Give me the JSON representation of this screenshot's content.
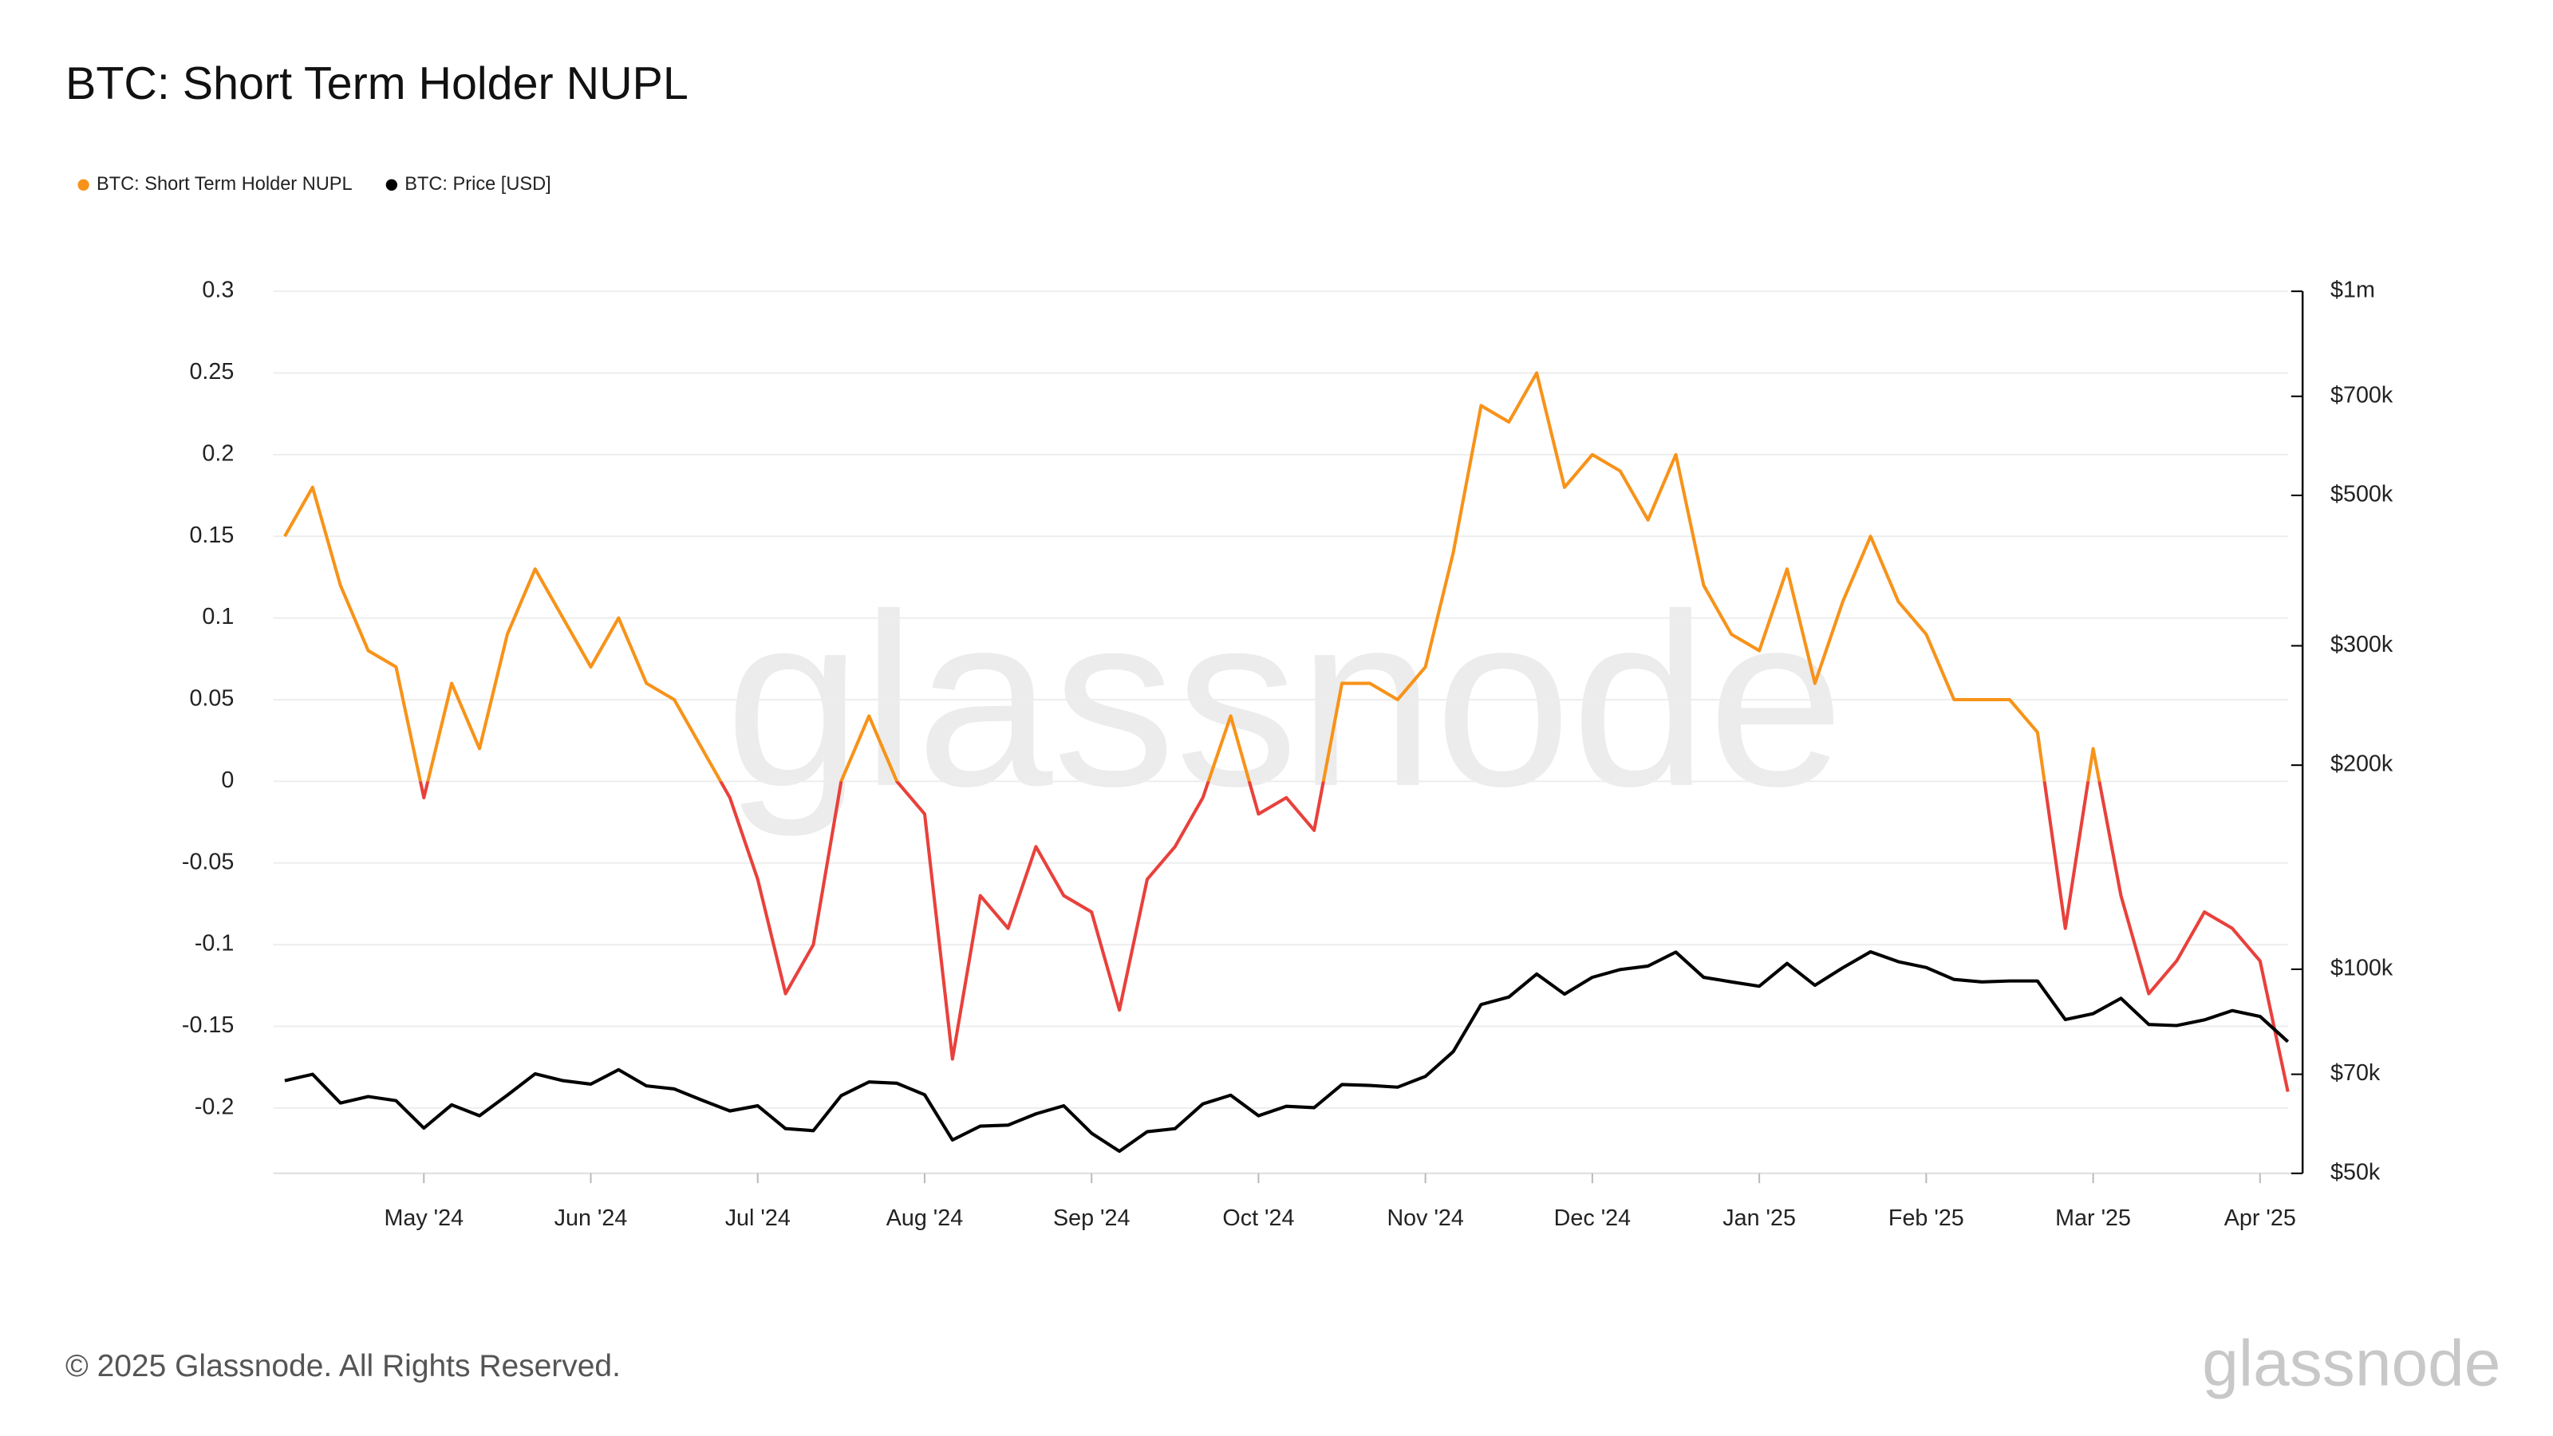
{
  "chart_data": {
    "type": "line",
    "title": "BTC: Short Term Holder NUPL",
    "copyright": "© 2025 Glassnode. All Rights Reserved.",
    "watermark": "glassnode",
    "categories": [
      null,
      null,
      null,
      null,
      null,
      "May '24",
      null,
      null,
      null,
      null,
      null,
      "Jun '24",
      null,
      null,
      null,
      null,
      null,
      "Jul '24",
      null,
      null,
      null,
      null,
      null,
      "Aug '24",
      null,
      null,
      null,
      null,
      null,
      "Sep '24",
      null,
      null,
      null,
      null,
      null,
      "Oct '24",
      null,
      null,
      null,
      null,
      null,
      "Nov '24",
      null,
      null,
      null,
      null,
      null,
      "Dec '24",
      null,
      null,
      null,
      null,
      null,
      "Jan '25",
      null,
      null,
      null,
      null,
      null,
      "Feb '25",
      null,
      null,
      null,
      null,
      null,
      "Mar '25",
      null,
      null,
      null,
      null,
      null,
      "Apr '25",
      null
    ],
    "series": [
      {
        "name": "BTC: Short Term Holder NUPL",
        "color": "#f7931a",
        "color_below_zero": "#e8413c",
        "values": [
          0.15,
          0.18,
          0.12,
          0.08,
          0.07,
          -0.01,
          0.06,
          0.02,
          0.09,
          0.13,
          0.1,
          0.07,
          0.1,
          0.06,
          0.05,
          0.02,
          -0.01,
          -0.06,
          -0.13,
          -0.1,
          0.0,
          0.04,
          0.0,
          -0.02,
          -0.17,
          -0.07,
          -0.09,
          -0.04,
          -0.07,
          -0.08,
          -0.14,
          -0.06,
          -0.04,
          -0.01,
          0.04,
          -0.02,
          -0.01,
          -0.03,
          0.06,
          0.06,
          0.05,
          0.07,
          0.14,
          0.23,
          0.22,
          0.25,
          0.18,
          0.2,
          0.19,
          0.16,
          0.2,
          0.12,
          0.09,
          0.08,
          0.13,
          0.06,
          0.11,
          0.15,
          0.11,
          0.09,
          0.05,
          0.05,
          0.05,
          0.03,
          -0.09,
          0.02,
          -0.07,
          -0.13,
          -0.11,
          -0.08,
          -0.09,
          -0.11,
          -0.19
        ]
      },
      {
        "name": "BTC: Price [USD]",
        "color": "#000000",
        "axis": "y2",
        "values": [
          68500,
          70000,
          63500,
          64900,
          64000,
          58300,
          63100,
          60800,
          65200,
          70100,
          68500,
          67700,
          71100,
          67300,
          66600,
          64100,
          61800,
          62900,
          58200,
          57800,
          65100,
          68200,
          67900,
          65300,
          56000,
          58700,
          58900,
          61200,
          62900,
          57300,
          53900,
          57600,
          58200,
          63300,
          65200,
          60800,
          62800,
          62500,
          67600,
          67400,
          67000,
          69500,
          75600,
          88700,
          91000,
          98400,
          91900,
          97300,
          99900,
          101100,
          106000,
          97300,
          95800,
          94400,
          102000,
          94700,
          100500,
          106100,
          102600,
          100600,
          96600,
          95800,
          96100,
          96100,
          84300,
          86000,
          90600,
          82900,
          82600,
          84200,
          86900,
          85200,
          78200
        ]
      }
    ],
    "ylim": [
      -0.24,
      0.3
    ],
    "yticks": [
      -0.2,
      -0.15,
      -0.1,
      -0.05,
      0,
      0.05,
      0.1,
      0.15,
      0.2,
      0.25,
      0.3
    ],
    "y2lim": [
      50000,
      1000000
    ],
    "y2scale": "log",
    "y2ticks": [
      {
        "value": 50000,
        "label": "$50k"
      },
      {
        "value": 70000,
        "label": "$70k"
      },
      {
        "value": 100000,
        "label": "$100k"
      },
      {
        "value": 200000,
        "label": "$200k"
      },
      {
        "value": 300000,
        "label": "$300k"
      },
      {
        "value": 500000,
        "label": "$500k"
      },
      {
        "value": 700000,
        "label": "$700k"
      },
      {
        "value": 1000000,
        "label": "$1m"
      }
    ],
    "grid": true,
    "legend": "top-left"
  }
}
